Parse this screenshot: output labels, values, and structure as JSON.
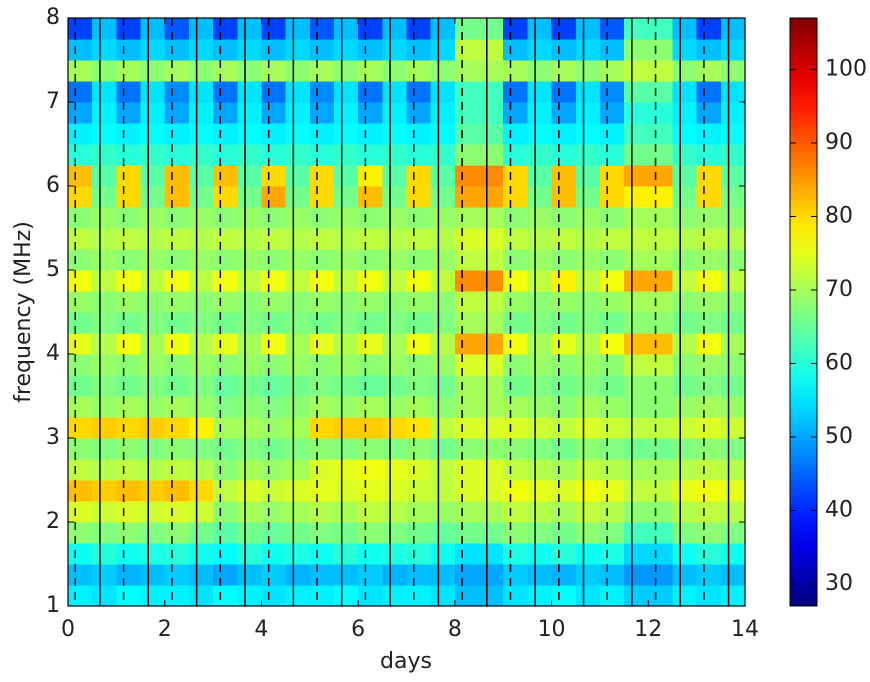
{
  "chart_data": {
    "type": "heatmap",
    "xlabel": "days",
    "ylabel": "frequency (MHz)",
    "xlim": [
      0,
      14
    ],
    "ylim": [
      1,
      8
    ],
    "xticks": [
      0,
      2,
      4,
      6,
      8,
      10,
      12,
      14
    ],
    "yticks": [
      1,
      2,
      3,
      4,
      5,
      6,
      7,
      8
    ],
    "colormap": "jet",
    "clim": [
      27,
      107
    ],
    "cticks": [
      30,
      40,
      50,
      60,
      70,
      80,
      90,
      100
    ],
    "solid_lines": [
      0.66,
      1.66,
      2.66,
      3.66,
      4.66,
      5.66,
      6.66,
      7.66,
      8.66,
      9.66,
      10.66,
      11.66,
      12.66,
      13.66
    ],
    "dashed_lines": [
      0.15,
      1.15,
      2.15,
      3.15,
      4.15,
      5.15,
      6.15,
      7.15,
      8.15,
      9.15,
      10.15,
      11.15,
      12.15,
      13.15
    ],
    "x_bins": [
      0,
      0.5,
      1,
      1.5,
      2,
      2.5,
      3,
      3.5,
      4,
      4.5,
      5,
      5.5,
      6,
      6.5,
      7,
      7.5,
      8,
      8.5,
      9,
      9.5,
      10,
      10.5,
      11,
      11.5,
      12,
      12.5,
      13,
      13.5,
      14
    ],
    "y_bins": [
      1,
      1.25,
      1.5,
      1.75,
      2,
      2.25,
      2.5,
      2.75,
      3,
      3.25,
      3.5,
      3.75,
      4,
      4.25,
      4.5,
      4.75,
      5,
      5.25,
      5.5,
      5.75,
      6,
      6.25,
      6.5,
      6.75,
      7,
      7.25,
      7.5,
      7.75,
      8
    ],
    "z": [
      [
        56,
        55,
        57,
        56,
        56,
        55,
        57,
        56,
        55,
        56,
        56,
        57,
        55,
        56,
        56,
        55,
        52,
        52,
        55,
        56,
        57,
        55,
        56,
        53,
        53,
        56,
        55,
        56
      ],
      [
        52,
        53,
        51,
        52,
        53,
        52,
        50,
        52,
        53,
        51,
        52,
        52,
        53,
        51,
        52,
        52,
        50,
        50,
        53,
        52,
        51,
        53,
        52,
        49,
        49,
        52,
        53,
        52
      ],
      [
        58,
        60,
        58,
        59,
        60,
        58,
        57,
        60,
        58,
        59,
        58,
        60,
        58,
        59,
        60,
        58,
        55,
        55,
        59,
        58,
        60,
        58,
        59,
        54,
        54,
        58,
        60,
        58
      ],
      [
        68,
        67,
        68,
        67,
        68,
        66,
        64,
        66,
        65,
        66,
        67,
        66,
        68,
        67,
        66,
        65,
        66,
        66,
        68,
        67,
        66,
        68,
        67,
        62,
        62,
        67,
        68,
        67
      ],
      [
        74,
        73,
        74,
        73,
        74,
        73,
        68,
        70,
        69,
        70,
        71,
        70,
        72,
        71,
        70,
        69,
        70,
        70,
        72,
        71,
        70,
        72,
        71,
        68,
        68,
        71,
        72,
        71
      ],
      [
        82,
        81,
        82,
        81,
        82,
        80,
        72,
        74,
        73,
        74,
        75,
        74,
        75,
        74,
        73,
        72,
        74,
        74,
        76,
        75,
        74,
        76,
        75,
        72,
        72,
        75,
        76,
        75
      ],
      [
        72,
        71,
        72,
        71,
        72,
        71,
        68,
        70,
        69,
        70,
        74,
        75,
        76,
        75,
        74,
        72,
        74,
        74,
        72,
        71,
        70,
        72,
        71,
        70,
        70,
        71,
        72,
        71
      ],
      [
        68,
        67,
        68,
        67,
        68,
        67,
        66,
        67,
        66,
        67,
        68,
        67,
        68,
        67,
        68,
        66,
        68,
        68,
        68,
        67,
        66,
        68,
        67,
        66,
        66,
        67,
        68,
        67
      ],
      [
        80,
        81,
        80,
        81,
        80,
        78,
        70,
        70,
        69,
        70,
        80,
        81,
        81,
        80,
        79,
        72,
        74,
        74,
        74,
        73,
        72,
        74,
        73,
        72,
        72,
        73,
        74,
        73
      ],
      [
        70,
        69,
        70,
        69,
        70,
        69,
        67,
        68,
        67,
        68,
        70,
        69,
        70,
        69,
        70,
        68,
        70,
        70,
        70,
        69,
        68,
        70,
        69,
        68,
        68,
        69,
        70,
        69
      ],
      [
        66,
        67,
        66,
        67,
        66,
        67,
        65,
        66,
        65,
        66,
        67,
        66,
        65,
        66,
        67,
        66,
        70,
        70,
        66,
        67,
        66,
        67,
        66,
        68,
        68,
        66,
        67,
        66
      ],
      [
        68,
        69,
        68,
        69,
        68,
        69,
        68,
        69,
        68,
        69,
        68,
        69,
        68,
        69,
        68,
        69,
        74,
        74,
        68,
        69,
        68,
        69,
        68,
        72,
        72,
        68,
        69,
        68
      ],
      [
        75,
        71,
        76,
        70,
        76,
        71,
        75,
        70,
        76,
        70,
        75,
        71,
        75,
        70,
        76,
        71,
        84,
        84,
        76,
        70,
        75,
        71,
        76,
        82,
        82,
        71,
        76,
        70
      ],
      [
        66,
        67,
        66,
        67,
        66,
        67,
        66,
        67,
        66,
        67,
        66,
        67,
        66,
        67,
        66,
        67,
        70,
        70,
        66,
        67,
        66,
        67,
        66,
        68,
        68,
        66,
        67,
        66
      ],
      [
        69,
        68,
        69,
        68,
        69,
        68,
        69,
        68,
        69,
        68,
        69,
        68,
        69,
        68,
        69,
        68,
        72,
        72,
        69,
        68,
        69,
        68,
        69,
        70,
        70,
        68,
        69,
        68
      ],
      [
        76,
        72,
        76,
        72,
        76,
        72,
        76,
        72,
        76,
        72,
        76,
        72,
        76,
        72,
        76,
        72,
        86,
        86,
        76,
        72,
        78,
        72,
        76,
        84,
        84,
        72,
        76,
        72
      ],
      [
        68,
        69,
        68,
        69,
        68,
        69,
        68,
        69,
        68,
        69,
        68,
        69,
        68,
        69,
        68,
        69,
        72,
        72,
        68,
        69,
        68,
        69,
        68,
        70,
        70,
        68,
        69,
        68
      ],
      [
        72,
        71,
        72,
        71,
        72,
        71,
        72,
        71,
        72,
        71,
        72,
        71,
        72,
        71,
        72,
        71,
        74,
        74,
        72,
        71,
        72,
        71,
        72,
        72,
        72,
        71,
        72,
        71
      ],
      [
        68,
        69,
        68,
        69,
        68,
        69,
        68,
        69,
        68,
        69,
        68,
        69,
        68,
        69,
        68,
        69,
        70,
        70,
        68,
        69,
        68,
        69,
        68,
        70,
        70,
        68,
        69,
        68
      ],
      [
        80,
        66,
        80,
        66,
        82,
        66,
        80,
        66,
        84,
        66,
        80,
        66,
        82,
        66,
        80,
        66,
        84,
        84,
        80,
        66,
        82,
        66,
        80,
        78,
        78,
        66,
        80,
        66
      ],
      [
        82,
        64,
        80,
        64,
        82,
        64,
        82,
        64,
        80,
        64,
        80,
        64,
        78,
        64,
        80,
        64,
        86,
        86,
        80,
        64,
        82,
        64,
        80,
        84,
        84,
        64,
        80,
        64
      ],
      [
        60,
        61,
        60,
        61,
        60,
        61,
        60,
        61,
        60,
        61,
        60,
        61,
        60,
        61,
        60,
        61,
        68,
        68,
        60,
        61,
        60,
        61,
        60,
        66,
        66,
        61,
        60,
        61
      ],
      [
        56,
        57,
        56,
        57,
        56,
        57,
        56,
        57,
        56,
        57,
        56,
        57,
        56,
        57,
        56,
        57,
        64,
        64,
        56,
        57,
        56,
        57,
        56,
        62,
        62,
        57,
        56,
        57
      ],
      [
        50,
        56,
        50,
        56,
        50,
        56,
        50,
        56,
        50,
        56,
        50,
        56,
        50,
        56,
        50,
        56,
        62,
        62,
        50,
        56,
        50,
        56,
        50,
        60,
        60,
        56,
        50,
        56
      ],
      [
        46,
        55,
        46,
        55,
        48,
        55,
        46,
        55,
        46,
        55,
        48,
        55,
        46,
        55,
        46,
        55,
        62,
        62,
        46,
        55,
        46,
        55,
        48,
        64,
        64,
        55,
        46,
        55
      ],
      [
        70,
        68,
        70,
        68,
        70,
        68,
        70,
        68,
        70,
        68,
        70,
        68,
        70,
        68,
        70,
        68,
        70,
        70,
        70,
        68,
        70,
        68,
        70,
        72,
        72,
        68,
        70,
        68
      ],
      [
        52,
        54,
        52,
        54,
        52,
        54,
        52,
        54,
        52,
        54,
        52,
        54,
        52,
        54,
        52,
        54,
        72,
        72,
        52,
        54,
        52,
        54,
        52,
        68,
        68,
        54,
        52,
        54
      ],
      [
        42,
        52,
        42,
        52,
        44,
        52,
        42,
        52,
        42,
        52,
        44,
        52,
        42,
        52,
        42,
        52,
        66,
        66,
        42,
        52,
        42,
        52,
        44,
        62,
        62,
        52,
        42,
        52
      ]
    ]
  }
}
